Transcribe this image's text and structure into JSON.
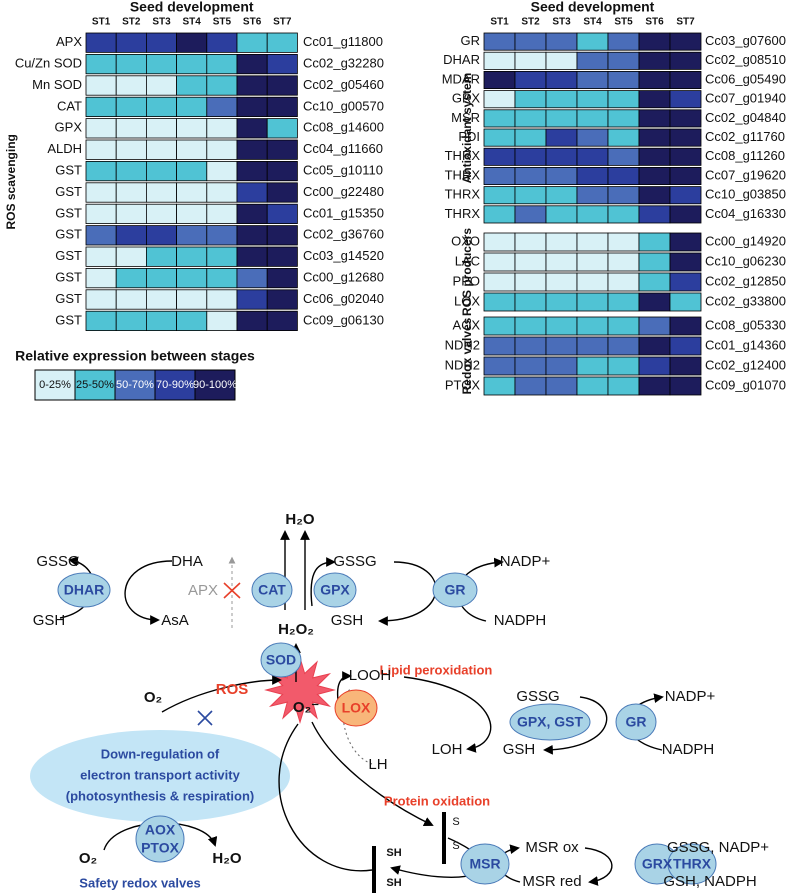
{
  "heatmaps": [
    {
      "title": "Seed development",
      "stages": [
        "ST1",
        "ST2",
        "ST3",
        "ST4",
        "ST5",
        "ST6",
        "ST7"
      ],
      "groups": [
        {
          "label": "ROS scavenging",
          "rows": [
            {
              "name": "APX",
              "gene": "Cc01_g11800",
              "levels": [
                3,
                3,
                3,
                4,
                3,
                1,
                1
              ]
            },
            {
              "name": "Cu/Zn SOD",
              "gene": "Cc02_g32280",
              "levels": [
                1,
                1,
                1,
                1,
                1,
                4,
                3
              ]
            },
            {
              "name": "Mn SOD",
              "gene": "Cc02_g05460",
              "levels": [
                0,
                0,
                0,
                1,
                1,
                4,
                4
              ]
            },
            {
              "name": "CAT",
              "gene": "Cc10_g00570",
              "levels": [
                1,
                1,
                1,
                1,
                2,
                4,
                4
              ]
            },
            {
              "name": "GPX",
              "gene": "Cc08_g14600",
              "levels": [
                0,
                0,
                0,
                0,
                0,
                4,
                1
              ]
            },
            {
              "name": "ALDH",
              "gene": "Cc04_g11660",
              "levels": [
                0,
                0,
                0,
                0,
                0,
                4,
                4
              ]
            },
            {
              "name": "GST",
              "gene": "Cc05_g10110",
              "levels": [
                1,
                1,
                1,
                1,
                0,
                4,
                4
              ]
            },
            {
              "name": "GST",
              "gene": "Cc00_g22480",
              "levels": [
                0,
                0,
                0,
                0,
                0,
                3,
                4
              ]
            },
            {
              "name": "GST",
              "gene": "Cc01_g15350",
              "levels": [
                0,
                0,
                0,
                0,
                0,
                4,
                3
              ]
            },
            {
              "name": "GST",
              "gene": "Cc02_g36760",
              "levels": [
                2,
                3,
                3,
                2,
                2,
                4,
                4
              ]
            },
            {
              "name": "GST",
              "gene": "Cc03_g14520",
              "levels": [
                0,
                0,
                1,
                1,
                1,
                4,
                4
              ]
            },
            {
              "name": "GST",
              "gene": "Cc00_g12680",
              "levels": [
                0,
                1,
                1,
                1,
                1,
                2,
                4
              ]
            },
            {
              "name": "GST",
              "gene": "Cc06_g02040",
              "levels": [
                0,
                0,
                0,
                0,
                0,
                3,
                4
              ]
            },
            {
              "name": "GST",
              "gene": "Cc09_g06130",
              "levels": [
                1,
                1,
                1,
                1,
                0,
                4,
                4
              ]
            }
          ]
        }
      ]
    },
    {
      "title": "Seed development",
      "stages": [
        "ST1",
        "ST2",
        "ST3",
        "ST4",
        "ST5",
        "ST6",
        "ST7"
      ],
      "groups": [
        {
          "label": "Antioxidant system",
          "rows": [
            {
              "name": "GR",
              "gene": "Cc03_g07600",
              "levels": [
                2,
                2,
                2,
                1,
                2,
                4,
                4
              ]
            },
            {
              "name": "DHAR",
              "gene": "Cc02_g08510",
              "levels": [
                0,
                0,
                0,
                2,
                2,
                4,
                4
              ]
            },
            {
              "name": "MDAR",
              "gene": "Cc06_g05490",
              "levels": [
                4,
                3,
                3,
                2,
                2,
                4,
                4
              ]
            },
            {
              "name": "GRX",
              "gene": "Cc07_g01940",
              "levels": [
                0,
                1,
                1,
                1,
                1,
                4,
                3
              ]
            },
            {
              "name": "MSR",
              "gene": "Cc02_g04840",
              "levels": [
                1,
                1,
                1,
                1,
                1,
                4,
                4
              ]
            },
            {
              "name": "PDI",
              "gene": "Cc02_g11760",
              "levels": [
                1,
                1,
                3,
                2,
                1,
                4,
                4
              ]
            },
            {
              "name": "THRX",
              "gene": "Cc08_g11260",
              "levels": [
                3,
                3,
                3,
                3,
                2,
                4,
                4
              ]
            },
            {
              "name": "THRX",
              "gene": "Cc07_g19620",
              "levels": [
                2,
                2,
                2,
                3,
                3,
                4,
                4
              ]
            },
            {
              "name": "THRX",
              "gene": "Cc10_g03850",
              "levels": [
                1,
                1,
                1,
                2,
                2,
                4,
                3
              ]
            },
            {
              "name": "THRX",
              "gene": "Cc04_g16330",
              "levels": [
                1,
                2,
                1,
                1,
                1,
                3,
                4
              ]
            }
          ]
        },
        {
          "label": "ROS producers",
          "rows": [
            {
              "name": "OXO",
              "gene": "Cc00_g14920",
              "levels": [
                0,
                0,
                0,
                0,
                0,
                1,
                4
              ]
            },
            {
              "name": "LAC",
              "gene": "Cc10_g06230",
              "levels": [
                0,
                0,
                0,
                0,
                0,
                1,
                4
              ]
            },
            {
              "name": "PPO",
              "gene": "Cc02_g12850",
              "levels": [
                0,
                0,
                0,
                0,
                0,
                1,
                3
              ]
            },
            {
              "name": "LOX",
              "gene": "Cc02_g33800",
              "levels": [
                1,
                1,
                1,
                1,
                1,
                4,
                1
              ]
            }
          ]
        },
        {
          "label": "Redox valves",
          "rows": [
            {
              "name": "AOX",
              "gene": "Cc08_g05330",
              "levels": [
                1,
                1,
                1,
                1,
                1,
                2,
                4
              ]
            },
            {
              "name": "NDH2",
              "gene": "Cc01_g14360",
              "levels": [
                2,
                2,
                2,
                2,
                2,
                4,
                3
              ]
            },
            {
              "name": "NDH2",
              "gene": "Cc02_g12400",
              "levels": [
                2,
                2,
                2,
                1,
                1,
                3,
                4
              ]
            },
            {
              "name": "PTOX",
              "gene": "Cc09_g01070",
              "levels": [
                1,
                2,
                2,
                1,
                1,
                4,
                4
              ]
            }
          ]
        }
      ]
    }
  ],
  "legend": {
    "title": "Relative expression  between stages",
    "classes": [
      {
        "label": "0-25%",
        "color": "#d8f1f6"
      },
      {
        "label": "25-50%",
        "color": "#50c3d4"
      },
      {
        "label": "50-70%",
        "color": "#4a6db9"
      },
      {
        "label": "70-90%",
        "color": "#2c3e9e"
      },
      {
        "label": "90-100%",
        "color": "#1d1c5c"
      }
    ]
  },
  "diagram": {
    "labels": [
      "GSSG",
      "DHA",
      "H₂O",
      "GSSG",
      "NADP+",
      "DHAR",
      "APX",
      "CAT",
      "GPX",
      "GR",
      "GSH",
      "AsA",
      "GSH",
      "NADPH",
      "H₂O₂",
      "Lipid peroxidation",
      "SOD",
      "LOOH",
      "GSSG",
      "NADP+",
      "ROS",
      "O₂⁻",
      "LOX",
      "O₂",
      "GPX, GST",
      "GR",
      "LOH",
      "GSH",
      "NADPH",
      "LH",
      "Down-regulation of",
      "electron transport activity",
      "(photosynthesis & respiration)",
      "Protein oxidation",
      "S",
      "S",
      "AOX",
      "PTOX",
      "O₂",
      "H₂O",
      "SH",
      "SH",
      "MSR ox",
      "GSSG, NADP+",
      "MSR",
      "GRX",
      "THRX",
      "Safety redox valves",
      "MSR red",
      "GSH, NADPH"
    ]
  }
}
